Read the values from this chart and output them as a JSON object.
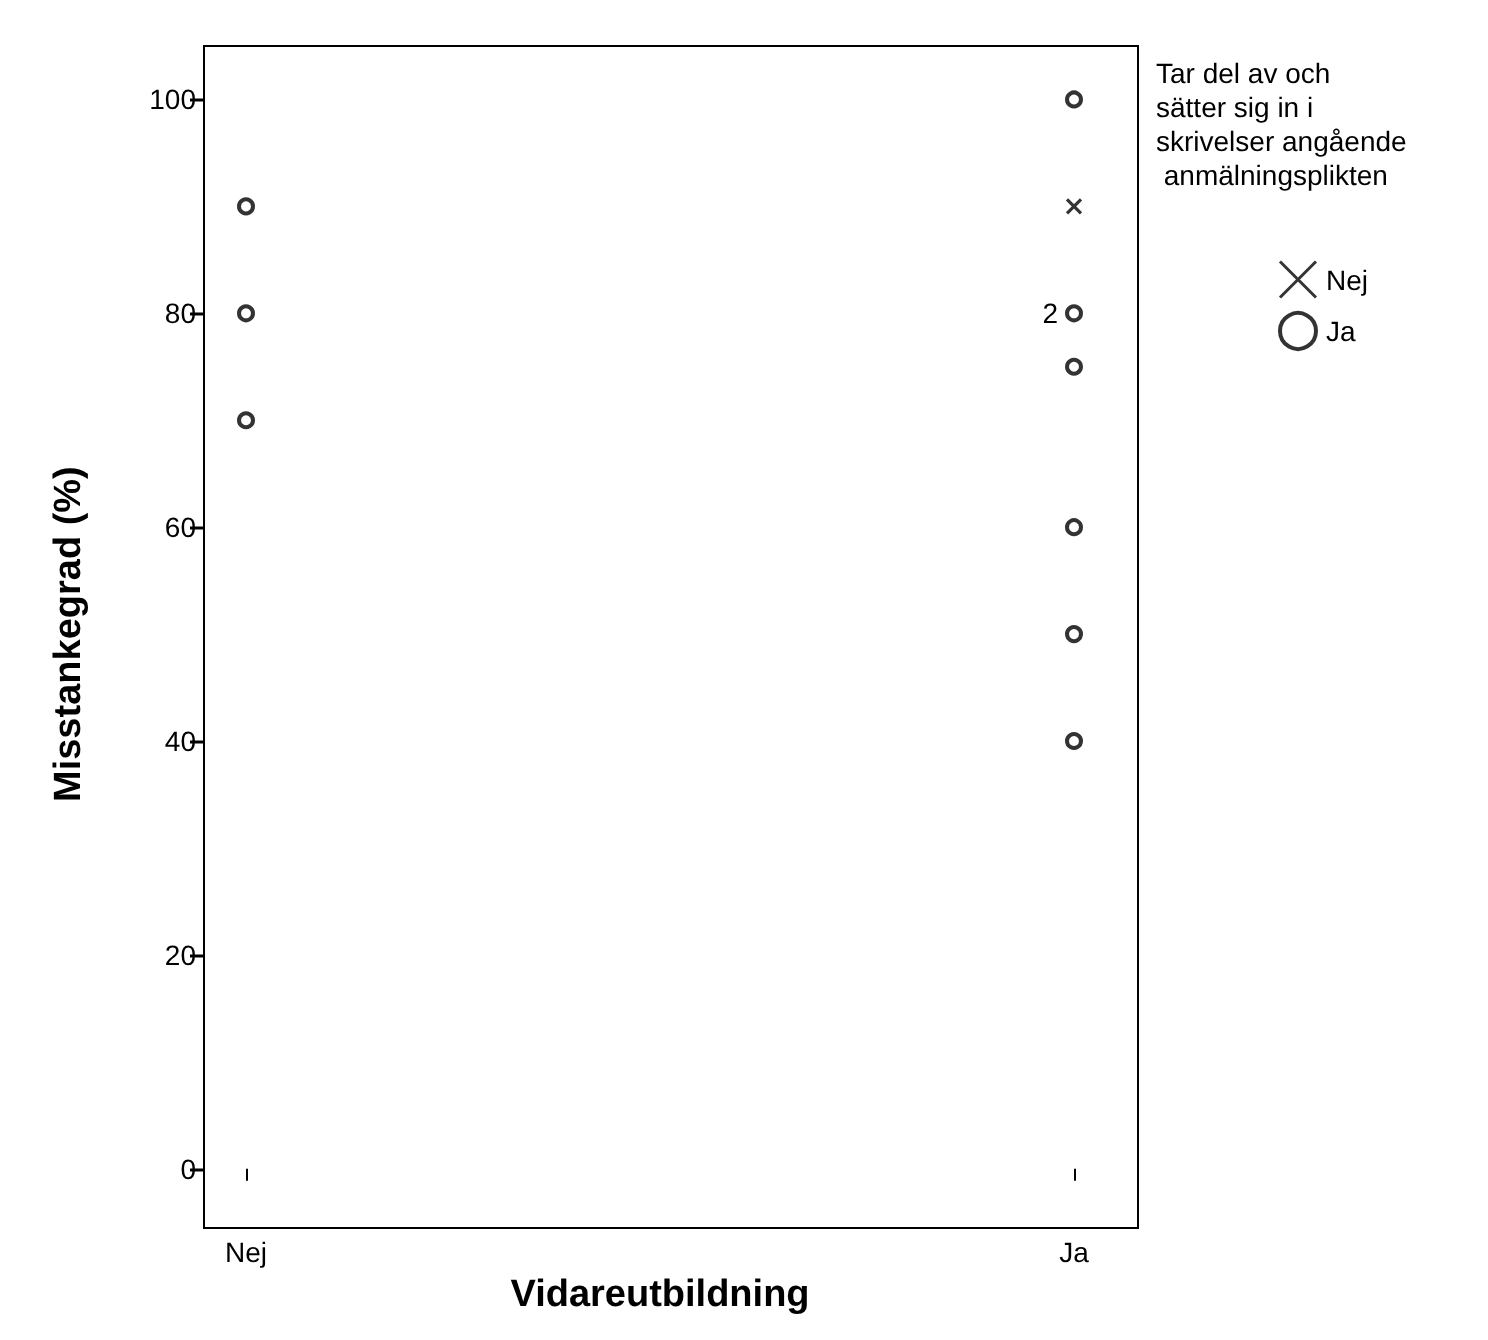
{
  "chart_data": {
    "type": "scatter",
    "xlabel": "Vidareutbildning",
    "ylabel": "Misstankegrad (%)",
    "legend_title": "Tar del av och sätter sig in i skrivelser angående anmälningsplikten",
    "categories": [
      "Nej",
      "Ja"
    ],
    "ylim": [
      -5,
      105
    ],
    "yticks": [
      0,
      20,
      40,
      60,
      80,
      100
    ],
    "grid": false,
    "legend": "top right",
    "series": [
      {
        "name": "Nej",
        "color": "#000000",
        "marker": "cross",
        "x": [
          "Ja"
        ],
        "values": [
          90
        ]
      },
      {
        "name": "Ja",
        "color": "#000000",
        "marker": "circle",
        "x": [
          "Nej",
          "Nej",
          "Nej",
          "Ja",
          "Ja",
          "Ja",
          "Ja",
          "Ja",
          "Ja"
        ],
        "values": [
          90,
          80,
          70,
          100,
          80,
          75,
          60,
          50,
          40
        ]
      }
    ],
    "annotations": [
      {
        "text": "2",
        "x": "Ja",
        "y": 80
      }
    ]
  }
}
